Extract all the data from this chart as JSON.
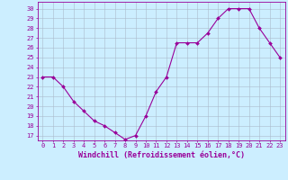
{
  "x": [
    0,
    1,
    2,
    3,
    4,
    5,
    6,
    7,
    8,
    9,
    10,
    11,
    12,
    13,
    14,
    15,
    16,
    17,
    18,
    19,
    20,
    21,
    22,
    23
  ],
  "y": [
    23,
    23,
    22,
    20.5,
    19.5,
    18.5,
    18,
    17.3,
    16.6,
    17,
    19,
    21.5,
    23,
    26.5,
    26.5,
    26.5,
    27.5,
    29,
    30,
    30,
    30,
    28,
    26.5,
    25
  ],
  "line_color": "#990099",
  "marker": "D",
  "markersize": 2.0,
  "linewidth": 0.8,
  "bg_color": "#cceeff",
  "grid_color": "#aabbcc",
  "xlabel": "Windchill (Refroidissement éolien,°C)",
  "xlabel_fontsize": 6,
  "xtick_labels": [
    "0",
    "1",
    "2",
    "3",
    "4",
    "5",
    "6",
    "7",
    "8",
    "9",
    "10",
    "11",
    "12",
    "13",
    "14",
    "15",
    "16",
    "17",
    "18",
    "19",
    "20",
    "21",
    "22",
    "23"
  ],
  "ytick_labels": [
    "17",
    "18",
    "19",
    "20",
    "21",
    "22",
    "23",
    "24",
    "25",
    "26",
    "27",
    "28",
    "29",
    "30"
  ],
  "ylim": [
    16.5,
    30.7
  ],
  "xlim": [
    -0.5,
    23.5
  ],
  "tick_fontsize": 5.0,
  "tick_color": "#990099",
  "spine_color": "#990099"
}
